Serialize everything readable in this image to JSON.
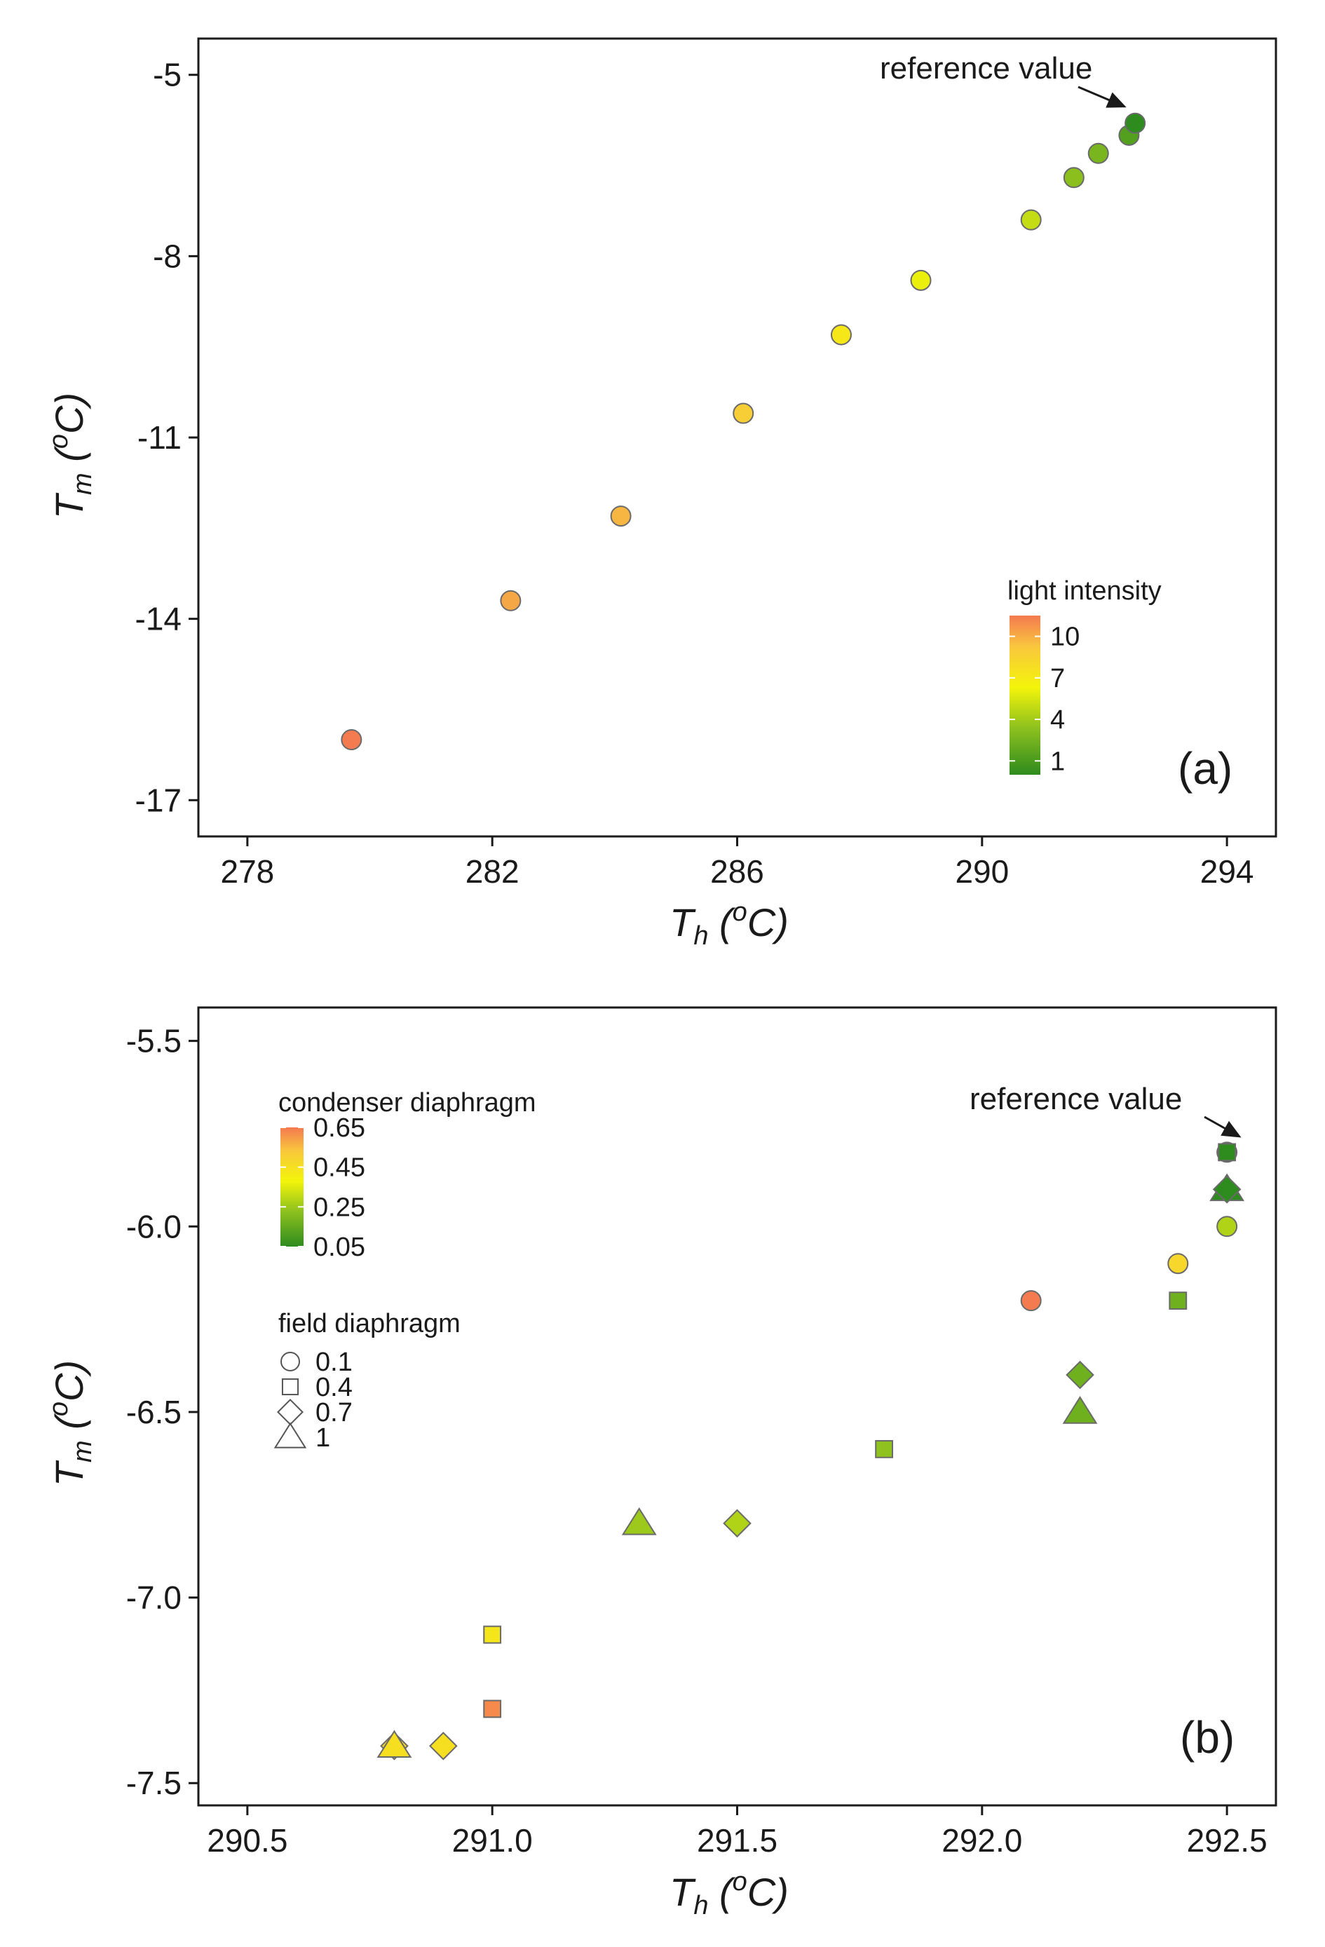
{
  "figure": {
    "panels": [
      "a",
      "b"
    ]
  },
  "chart_data": [
    {
      "id": "a",
      "type": "scatter",
      "panel_label": "(a)",
      "xlabel": "Th (oC)",
      "ylabel": "Tm (oC)",
      "xlim": [
        277.2,
        294.8
      ],
      "ylim": [
        -17.6,
        -4.4
      ],
      "x_ticks": [
        278,
        282,
        286,
        290,
        294
      ],
      "x_tick_labels": [
        "278",
        "282",
        "286",
        "290",
        "294"
      ],
      "y_ticks": [
        -5,
        -8,
        -11,
        -14,
        -17
      ],
      "y_tick_labels": [
        "-5",
        "-8",
        "-11",
        "-14",
        "-17"
      ],
      "grid": false,
      "legend": {
        "title": "light intensity",
        "placement": "bottom-right",
        "ticks": [
          "10",
          "7",
          "4",
          "1"
        ]
      },
      "color_scale": [
        "#2e8b1e",
        "#8fc21e",
        "#f4f40a",
        "#f8c83c",
        "#f47a50"
      ],
      "annotation": "reference value",
      "points": [
        {
          "x": 279.7,
          "y": -16.0,
          "light": 11.5
        },
        {
          "x": 282.3,
          "y": -13.7,
          "light": 10
        },
        {
          "x": 284.1,
          "y": -12.3,
          "light": 9.5
        },
        {
          "x": 286.1,
          "y": -10.6,
          "light": 8.5
        },
        {
          "x": 287.7,
          "y": -9.3,
          "light": 7
        },
        {
          "x": 289.0,
          "y": -8.4,
          "light": 6
        },
        {
          "x": 290.8,
          "y": -7.4,
          "light": 5
        },
        {
          "x": 291.5,
          "y": -6.7,
          "light": 3.5
        },
        {
          "x": 291.9,
          "y": -6.3,
          "light": 3
        },
        {
          "x": 292.4,
          "y": -6.0,
          "light": 2
        },
        {
          "x": 292.5,
          "y": -5.8,
          "light": 1
        }
      ]
    },
    {
      "id": "b",
      "type": "scatter",
      "panel_label": "(b)",
      "xlabel": "Th (oC)",
      "ylabel": "Tm (oC)",
      "xlim": [
        290.4,
        292.6
      ],
      "ylim": [
        -7.56,
        -5.41
      ],
      "x_ticks": [
        290.5,
        291.0,
        291.5,
        292.0,
        292.5
      ],
      "x_tick_labels": [
        "290.5",
        "291.0",
        "291.5",
        "292.0",
        "292.5"
      ],
      "y_ticks": [
        -5.5,
        -6.0,
        -6.5,
        -7.0,
        -7.5
      ],
      "y_tick_labels": [
        "-5.5",
        "-6.0",
        "-6.5",
        "-7.0",
        "-7.5"
      ],
      "grid": false,
      "legend": {
        "color_title": "condenser diaphragm",
        "color_ticks": [
          "0.65",
          "0.45",
          "0.25",
          "0.05"
        ],
        "shape_title": "field diaphragm",
        "shape_entries": [
          {
            "label": "0.1",
            "shape": "circle"
          },
          {
            "label": "0.4",
            "shape": "square"
          },
          {
            "label": "0.7",
            "shape": "diamond"
          },
          {
            "label": "1",
            "shape": "triangle"
          }
        ],
        "placement": "top-left"
      },
      "color_scale": [
        "#2e8b1e",
        "#8fc21e",
        "#f4f40a",
        "#f8c83c",
        "#f47a50"
      ],
      "annotation": "reference value",
      "points": [
        {
          "x": 292.5,
          "y": -5.8,
          "condenser": 0.05,
          "shape": "circle"
        },
        {
          "x": 292.5,
          "y": -5.8,
          "condenser": 0.05,
          "shape": "square"
        },
        {
          "x": 292.5,
          "y": -5.9,
          "condenser": 0.05,
          "shape": "triangle"
        },
        {
          "x": 292.5,
          "y": -5.9,
          "condenser": 0.05,
          "shape": "diamond"
        },
        {
          "x": 292.5,
          "y": -6.0,
          "condenser": 0.25,
          "shape": "circle"
        },
        {
          "x": 292.4,
          "y": -6.1,
          "condenser": 0.45,
          "shape": "circle"
        },
        {
          "x": 292.4,
          "y": -6.2,
          "condenser": 0.15,
          "shape": "square"
        },
        {
          "x": 292.1,
          "y": -6.2,
          "condenser": 0.65,
          "shape": "circle"
        },
        {
          "x": 292.2,
          "y": -6.4,
          "condenser": 0.15,
          "shape": "diamond"
        },
        {
          "x": 292.2,
          "y": -6.5,
          "condenser": 0.15,
          "shape": "triangle"
        },
        {
          "x": 291.8,
          "y": -6.6,
          "condenser": 0.2,
          "shape": "square"
        },
        {
          "x": 291.3,
          "y": -6.8,
          "condenser": 0.22,
          "shape": "triangle"
        },
        {
          "x": 291.5,
          "y": -6.8,
          "condenser": 0.25,
          "shape": "diamond"
        },
        {
          "x": 291.0,
          "y": -7.1,
          "condenser": 0.4,
          "shape": "square"
        },
        {
          "x": 291.0,
          "y": -7.3,
          "condenser": 0.62,
          "shape": "square"
        },
        {
          "x": 290.8,
          "y": -7.4,
          "condenser": 0.45,
          "shape": "diamond"
        },
        {
          "x": 290.8,
          "y": -7.4,
          "condenser": 0.42,
          "shape": "triangle"
        },
        {
          "x": 290.9,
          "y": -7.4,
          "condenser": 0.42,
          "shape": "diamond"
        }
      ]
    }
  ]
}
